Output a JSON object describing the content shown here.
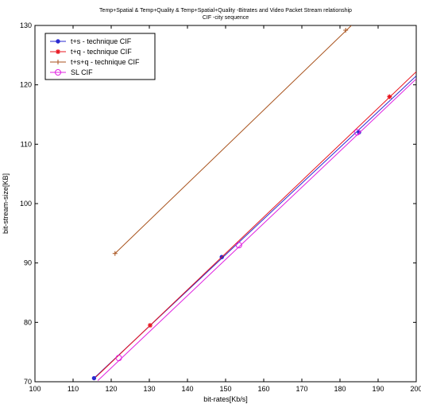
{
  "chart_data": {
    "type": "line",
    "title": "Temp+Spatial & Temp+Quality & Temp+Spatial+Quality -Bitrates and Video Packet Stream relationship",
    "subtitle": "CIF -city sequence",
    "xlabel": "bit-rates[Kb/s]",
    "ylabel": "bit-stream-size[KB]",
    "xlim": [
      100,
      200
    ],
    "ylim": [
      70,
      130
    ],
    "xticks": [
      "100",
      "110",
      "120",
      "130",
      "140",
      "150",
      "160",
      "170",
      "180",
      "190",
      "200"
    ],
    "yticks": [
      "70",
      "80",
      "90",
      "100",
      "110",
      "120",
      "130"
    ],
    "grid": false,
    "legend_position": "top-left",
    "series": [
      {
        "name": "t+s - technique CIF",
        "color": "#2a2ad0",
        "marker": "dot",
        "x": [
          115.5,
          149,
          185
        ],
        "y": [
          70.6,
          91,
          112
        ],
        "line_x": [
          115.5,
          200
        ],
        "line_y": [
          70.6,
          121.5
        ]
      },
      {
        "name": "t+q - technique CIF",
        "color": "#e8141e",
        "marker": "star",
        "x": [
          130.2,
          193
        ],
        "y": [
          79.5,
          118
        ],
        "line_x": [
          116,
          200
        ],
        "line_y": [
          70.8,
          122.2
        ]
      },
      {
        "name": "t+s+q - technique CIF",
        "color": "#a8521c",
        "marker": "plus",
        "x": [
          121,
          181.5
        ],
        "y": [
          91.6,
          129.2
        ],
        "line_x": [
          121,
          183
        ],
        "line_y": [
          91.6,
          130
        ]
      },
      {
        "name": "SL  CIF",
        "color": "#e020e0",
        "marker": "circle",
        "x": [
          122,
          153.5,
          184.5
        ],
        "y": [
          74,
          93,
          112
        ],
        "line_x": [
          116.5,
          200
        ],
        "line_y": [
          70.2,
          121
        ]
      }
    ]
  }
}
